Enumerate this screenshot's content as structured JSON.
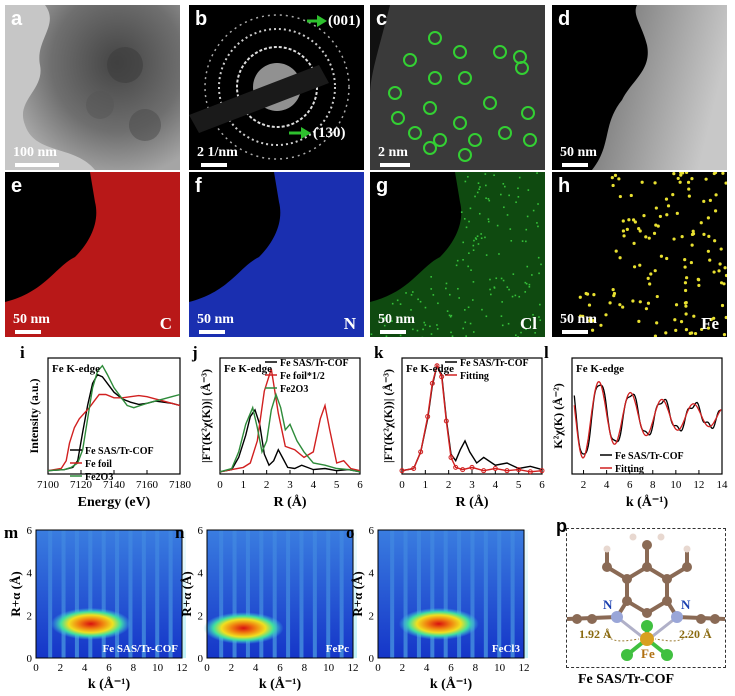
{
  "panels": {
    "a": {
      "label": "a",
      "scale": "100 nm"
    },
    "b": {
      "label": "b",
      "scale": "2 1/nm",
      "ring1": "(001)",
      "ring2": "(130)"
    },
    "c": {
      "label": "c",
      "scale": "2 nm"
    },
    "d": {
      "label": "d",
      "scale": "50 nm"
    },
    "e": {
      "label": "e",
      "scale": "50 nm",
      "element": "C"
    },
    "f": {
      "label": "f",
      "scale": "50 nm",
      "element": "N"
    },
    "g": {
      "label": "g",
      "scale": "50 nm",
      "element": "Cl"
    },
    "h": {
      "label": "h",
      "scale": "50 nm",
      "element": "Fe"
    },
    "i": {
      "label": "i",
      "edge": "Fe K-edge",
      "ylabel": "Intensity (a.u.)",
      "xlabel": "Energy (eV)",
      "legend": [
        "Fe SAS/Tr-COF",
        "Fe foil",
        "Fe2O3"
      ]
    },
    "j": {
      "label": "j",
      "edge": "Fe K-edge",
      "ylabel": "|FT(K²χ(K))| (Å⁻³)",
      "xlabel": "R (Å)",
      "legend": [
        "Fe SAS/Tr-COF",
        "Fe foil*1/2",
        "Fe2O3"
      ]
    },
    "k": {
      "label": "k",
      "edge": "Fe K-edge",
      "ylabel": "|FT(K²χ(K))| (Å⁻³)",
      "xlabel": "R (Å)",
      "legend": [
        "Fe SAS/Tr-COF",
        "Fitting"
      ]
    },
    "l": {
      "label": "l",
      "edge": "Fe K-edge",
      "ylabel": "K²χ(K) (Å⁻²)",
      "xlabel": "k (Å⁻¹)",
      "legend": [
        "Fe SAS/Tr-COF",
        "Fitting"
      ]
    },
    "m": {
      "label": "m",
      "ylabel": "R+α (Å)",
      "xlabel": "k (Å⁻¹)",
      "sample": "Fe SAS/Tr-COF"
    },
    "n": {
      "label": "n",
      "ylabel": "R+α (Å)",
      "xlabel": "k (Å⁻¹)",
      "sample": "FePc"
    },
    "o": {
      "label": "o",
      "ylabel": "R+α (Å)",
      "xlabel": "k (Å⁻¹)",
      "sample": "FeCl3"
    },
    "p": {
      "label": "p",
      "caption": "Fe SAS/Tr-COF",
      "bond1": "1.92 Å",
      "bond2": "2.20 Å",
      "atom_n": "N",
      "atom_fe": "Fe"
    }
  },
  "chart_data": [
    {
      "type": "line",
      "panel": "i",
      "x_ticks": [
        7100,
        7120,
        7140,
        7160,
        7180
      ],
      "xlim": [
        7100,
        7180
      ],
      "series": [
        {
          "name": "Fe SAS/Tr-COF",
          "color": "#000000",
          "x": [
            7100,
            7110,
            7115,
            7118,
            7121,
            7124,
            7127,
            7130,
            7133,
            7136,
            7140,
            7145,
            7150,
            7155,
            7160,
            7165,
            7170,
            7175,
            7180
          ],
          "y": [
            0.03,
            0.04,
            0.06,
            0.12,
            0.38,
            0.62,
            0.82,
            0.9,
            0.88,
            0.82,
            0.74,
            0.68,
            0.65,
            0.63,
            0.64,
            0.66,
            0.65,
            0.64,
            0.62
          ]
        },
        {
          "name": "Fe foil",
          "color": "#d12020",
          "x": [
            7100,
            7108,
            7111,
            7113,
            7116,
            7119,
            7122,
            7125,
            7128,
            7131,
            7135,
            7140,
            7145,
            7150,
            7155,
            7160,
            7165,
            7170,
            7175,
            7180
          ],
          "y": [
            0.03,
            0.05,
            0.12,
            0.28,
            0.42,
            0.5,
            0.55,
            0.6,
            0.66,
            0.72,
            0.72,
            0.69,
            0.69,
            0.7,
            0.71,
            0.7,
            0.68,
            0.66,
            0.64,
            0.62
          ]
        },
        {
          "name": "Fe2O3",
          "color": "#2e8b3a",
          "x": [
            7100,
            7110,
            7114,
            7118,
            7121,
            7124,
            7127,
            7130,
            7133,
            7136,
            7140,
            7144,
            7148,
            7152,
            7156,
            7160,
            7165,
            7170,
            7175,
            7180
          ],
          "y": [
            0.03,
            0.04,
            0.06,
            0.1,
            0.22,
            0.5,
            0.78,
            0.93,
            0.98,
            0.9,
            0.78,
            0.7,
            0.62,
            0.6,
            0.62,
            0.64,
            0.66,
            0.68,
            0.7,
            0.72
          ]
        }
      ]
    },
    {
      "type": "line",
      "panel": "j",
      "x_ticks": [
        0,
        1,
        2,
        3,
        4,
        5,
        6
      ],
      "xlim": [
        0,
        6
      ],
      "series": [
        {
          "name": "Fe SAS/Tr-COF",
          "color": "#000000",
          "x": [
            0,
            0.5,
            0.8,
            1.1,
            1.3,
            1.5,
            1.7,
            1.9,
            2.1,
            2.3,
            2.5,
            2.7,
            2.9,
            3.2,
            3.5,
            4,
            4.5,
            5,
            5.5,
            6
          ],
          "y": [
            0.02,
            0.04,
            0.15,
            0.35,
            0.52,
            0.58,
            0.45,
            0.18,
            0.08,
            0.12,
            0.22,
            0.14,
            0.06,
            0.05,
            0.08,
            0.04,
            0.05,
            0.03,
            0.04,
            0.02
          ]
        },
        {
          "name": "Fe foil*1/2",
          "color": "#d12020",
          "x": [
            0,
            0.5,
            1,
            1.3,
            1.6,
            1.9,
            2.2,
            2.5,
            2.8,
            3.2,
            3.6,
            4,
            4.3,
            4.5,
            4.7,
            5,
            5.3,
            5.6,
            6
          ],
          "y": [
            0.02,
            0.04,
            0.06,
            0.1,
            0.3,
            0.75,
            0.95,
            0.55,
            0.25,
            0.22,
            0.15,
            0.2,
            0.5,
            0.62,
            0.4,
            0.1,
            0.12,
            0.05,
            0.03
          ]
        },
        {
          "name": "Fe2O3",
          "color": "#2e8b3a",
          "x": [
            0,
            0.5,
            0.8,
            1.1,
            1.4,
            1.6,
            1.8,
            2,
            2.2,
            2.4,
            2.6,
            2.8,
            3,
            3.3,
            3.6,
            4,
            4.5,
            5,
            5.5,
            6
          ],
          "y": [
            0.02,
            0.05,
            0.2,
            0.45,
            0.6,
            0.42,
            0.2,
            0.3,
            0.58,
            0.72,
            0.6,
            0.4,
            0.45,
            0.3,
            0.2,
            0.1,
            0.08,
            0.05,
            0.04,
            0.02
          ]
        }
      ]
    },
    {
      "type": "line",
      "panel": "k",
      "x_ticks": [
        0,
        1,
        2,
        3,
        4,
        5,
        6
      ],
      "xlim": [
        0,
        6
      ],
      "series": [
        {
          "name": "Fe SAS/Tr-COF",
          "color": "#000000",
          "x": [
            0,
            0.5,
            0.8,
            1.1,
            1.3,
            1.5,
            1.7,
            1.9,
            2.1,
            2.3,
            2.5,
            2.7,
            2.9,
            3.2,
            3.5,
            4,
            4.5,
            5,
            5.5,
            6
          ],
          "y": [
            0.03,
            0.05,
            0.2,
            0.5,
            0.8,
            0.98,
            0.9,
            0.5,
            0.18,
            0.12,
            0.22,
            0.3,
            0.2,
            0.1,
            0.15,
            0.08,
            0.1,
            0.05,
            0.07,
            0.04
          ]
        },
        {
          "name": "Fitting",
          "color": "#d12020",
          "x": [
            0,
            0.5,
            0.8,
            1.1,
            1.3,
            1.5,
            1.7,
            1.9,
            2.1,
            2.3,
            2.6,
            3,
            3.5,
            4,
            4.5,
            5,
            5.5,
            6
          ],
          "y": [
            0.03,
            0.05,
            0.2,
            0.52,
            0.82,
            0.98,
            0.88,
            0.48,
            0.15,
            0.06,
            0.04,
            0.06,
            0.03,
            0.05,
            0.03,
            0.04,
            0.02,
            0.03
          ]
        }
      ]
    },
    {
      "type": "line",
      "panel": "l",
      "x_ticks": [
        2,
        4,
        6,
        8,
        10,
        12,
        14
      ],
      "xlim": [
        1,
        14
      ],
      "series": [
        {
          "name": "Fe SAS/Tr-COF",
          "color": "#000000"
        },
        {
          "name": "Fitting",
          "color": "#d12020"
        }
      ]
    },
    {
      "type": "heatmap",
      "panel": "m",
      "x_ticks": [
        0,
        2,
        4,
        6,
        8,
        10,
        12
      ],
      "y_ticks": [
        0,
        2,
        4,
        6
      ],
      "peak_k": 4.5,
      "peak_R": 1.6
    },
    {
      "type": "heatmap",
      "panel": "n",
      "x_ticks": [
        0,
        2,
        4,
        6,
        8,
        10,
        12
      ],
      "y_ticks": [
        0,
        2,
        4,
        6
      ],
      "peak_k": 3.0,
      "peak_R": 1.4
    },
    {
      "type": "heatmap",
      "panel": "o",
      "x_ticks": [
        0,
        2,
        4,
        6,
        8,
        10,
        12
      ],
      "y_ticks": [
        0,
        2,
        4,
        6
      ],
      "peak_k": 5.0,
      "peak_R": 1.6
    }
  ]
}
